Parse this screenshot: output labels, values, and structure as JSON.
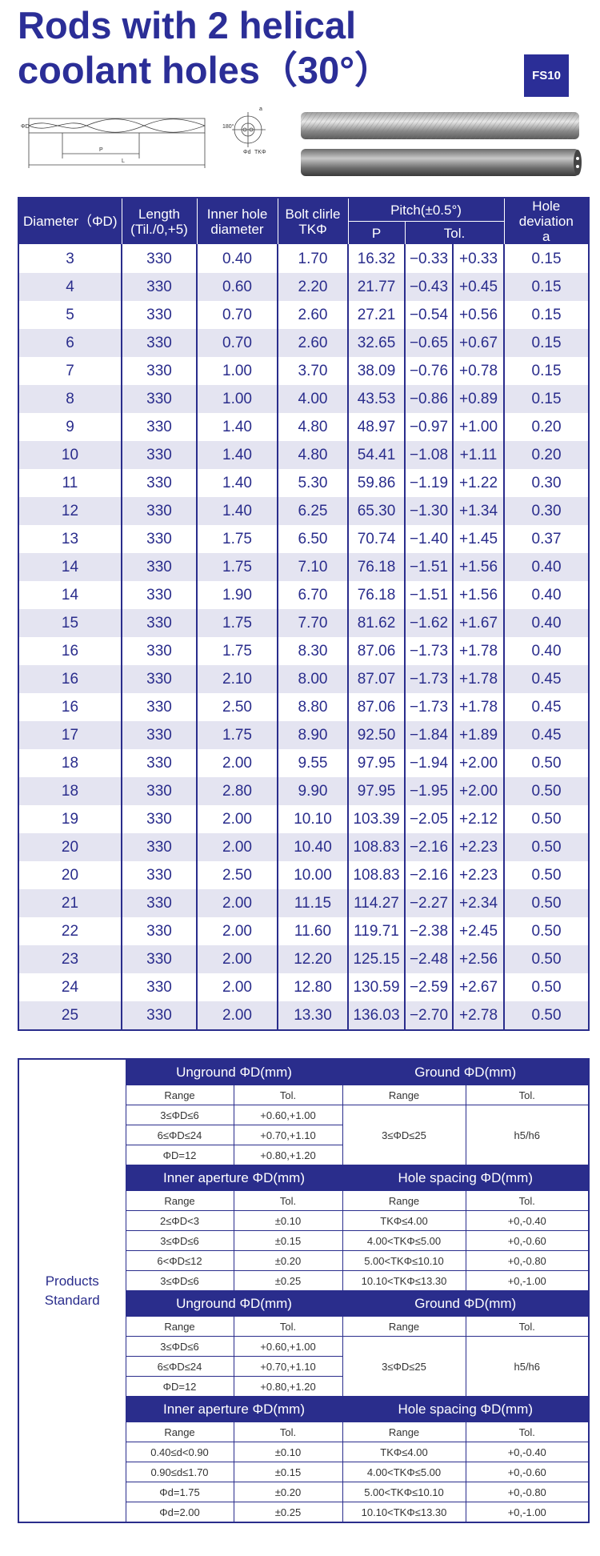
{
  "header": {
    "title_lines": [
      "Rods with 2 helical",
      "coolant holes（30°）"
    ],
    "badge": "FS10"
  },
  "diagram": {
    "labels": [
      "ΦD",
      "P",
      "L",
      "180°",
      "a",
      "Φd",
      "TKΦ"
    ]
  },
  "spec_table": {
    "headers": {
      "diameter": [
        "Diameter（ΦD)"
      ],
      "length": [
        "Length",
        "(Til./0,+5)"
      ],
      "inner": [
        "Inner hole",
        "diameter"
      ],
      "bolt": [
        "Bolt clirle",
        "TKΦ"
      ],
      "pitch": [
        "Pitch(±0.5°)"
      ],
      "pitch_p": [
        "P"
      ],
      "pitch_tol": [
        "Tol."
      ],
      "deviation": [
        "Hole deviation",
        "a"
      ]
    },
    "rows": [
      [
        "3",
        "330",
        "0.40",
        "1.70",
        "16.32",
        "−0.33",
        "+0.33",
        "0.15"
      ],
      [
        "4",
        "330",
        "0.60",
        "2.20",
        "21.77",
        "−0.43",
        "+0.45",
        "0.15"
      ],
      [
        "5",
        "330",
        "0.70",
        "2.60",
        "27.21",
        "−0.54",
        "+0.56",
        "0.15"
      ],
      [
        "6",
        "330",
        "0.70",
        "2.60",
        "32.65",
        "−0.65",
        "+0.67",
        "0.15"
      ],
      [
        "7",
        "330",
        "1.00",
        "3.70",
        "38.09",
        "−0.76",
        "+0.78",
        "0.15"
      ],
      [
        "8",
        "330",
        "1.00",
        "4.00",
        "43.53",
        "−0.86",
        "+0.89",
        "0.15"
      ],
      [
        "9",
        "330",
        "1.40",
        "4.80",
        "48.97",
        "−0.97",
        "+1.00",
        "0.20"
      ],
      [
        "10",
        "330",
        "1.40",
        "4.80",
        "54.41",
        "−1.08",
        "+1.11",
        "0.20"
      ],
      [
        "11",
        "330",
        "1.40",
        "5.30",
        "59.86",
        "−1.19",
        "+1.22",
        "0.30"
      ],
      [
        "12",
        "330",
        "1.40",
        "6.25",
        "65.30",
        "−1.30",
        "+1.34",
        "0.30"
      ],
      [
        "13",
        "330",
        "1.75",
        "6.50",
        "70.74",
        "−1.40",
        "+1.45",
        "0.37"
      ],
      [
        "14",
        "330",
        "1.75",
        "7.10",
        "76.18",
        "−1.51",
        "+1.56",
        "0.40"
      ],
      [
        "14",
        "330",
        "1.90",
        "6.70",
        "76.18",
        "−1.51",
        "+1.56",
        "0.40"
      ],
      [
        "15",
        "330",
        "1.75",
        "7.70",
        "81.62",
        "−1.62",
        "+1.67",
        "0.40"
      ],
      [
        "16",
        "330",
        "1.75",
        "8.30",
        "87.06",
        "−1.73",
        "+1.78",
        "0.40"
      ],
      [
        "16",
        "330",
        "2.10",
        "8.00",
        "87.07",
        "−1.73",
        "+1.78",
        "0.45"
      ],
      [
        "16",
        "330",
        "2.50",
        "8.80",
        "87.06",
        "−1.73",
        "+1.78",
        "0.45"
      ],
      [
        "17",
        "330",
        "1.75",
        "8.90",
        "92.50",
        "−1.84",
        "+1.89",
        "0.45"
      ],
      [
        "18",
        "330",
        "2.00",
        "9.55",
        "97.95",
        "−1.94",
        "+2.00",
        "0.50"
      ],
      [
        "18",
        "330",
        "2.80",
        "9.90",
        "97.95",
        "−1.95",
        "+2.00",
        "0.50"
      ],
      [
        "19",
        "330",
        "2.00",
        "10.10",
        "103.39",
        "−2.05",
        "+2.12",
        "0.50"
      ],
      [
        "20",
        "330",
        "2.00",
        "10.40",
        "108.83",
        "−2.16",
        "+2.23",
        "0.50"
      ],
      [
        "20",
        "330",
        "2.50",
        "10.00",
        "108.83",
        "−2.16",
        "+2.23",
        "0.50"
      ],
      [
        "21",
        "330",
        "2.00",
        "11.15",
        "114.27",
        "−2.27",
        "+2.34",
        "0.50"
      ],
      [
        "22",
        "330",
        "2.00",
        "11.60",
        "119.71",
        "−2.38",
        "+2.45",
        "0.50"
      ],
      [
        "23",
        "330",
        "2.00",
        "12.20",
        "125.15",
        "−2.48",
        "+2.56",
        "0.50"
      ],
      [
        "24",
        "330",
        "2.00",
        "12.80",
        "130.59",
        "−2.59",
        "+2.67",
        "0.50"
      ],
      [
        "25",
        "330",
        "2.00",
        "13.30",
        "136.03",
        "−2.70",
        "+2.78",
        "0.50"
      ]
    ]
  },
  "standards": {
    "label": [
      "Products",
      "Standard"
    ],
    "blocks": [
      {
        "left": {
          "title": "Unground ΦD(mm)",
          "headers": [
            "Range",
            "Tol."
          ],
          "rows": [
            [
              "3≤ΦD≤6",
              "+0.60,+1.00"
            ],
            [
              "6≤ΦD≤24",
              "+0.70,+1.10"
            ],
            [
              "ΦD=12",
              "+0.80,+1.20"
            ]
          ]
        },
        "right": {
          "title": "Ground ΦD(mm)",
          "headers": [
            "Range",
            "Tol."
          ],
          "rows": [
            [
              "3≤ΦD≤25",
              "h5/h6"
            ]
          ]
        }
      },
      {
        "left": {
          "title": "Inner aperture ΦD(mm)",
          "headers": [
            "Range",
            "Tol."
          ],
          "rows": [
            [
              "2≤ΦD<3",
              "±0.10"
            ],
            [
              "3≤ΦD≤6",
              "±0.15"
            ],
            [
              "6<ΦD≤12",
              "±0.20"
            ],
            [
              "3≤ΦD≤6",
              "±0.25"
            ]
          ]
        },
        "right": {
          "title": "Hole spacing ΦD(mm)",
          "headers": [
            "Range",
            "Tol."
          ],
          "rows": [
            [
              "TKΦ≤4.00",
              "+0,-0.40"
            ],
            [
              "4.00<TKΦ≤5.00",
              "+0,-0.60"
            ],
            [
              "5.00<TKΦ≤10.10",
              "+0,-0.80"
            ],
            [
              "10.10<TKΦ≤13.30",
              "+0,-1.00"
            ]
          ]
        }
      },
      {
        "left": {
          "title": "Unground ΦD(mm)",
          "headers": [
            "Range",
            "Tol."
          ],
          "rows": [
            [
              "3≤ΦD≤6",
              "+0.60,+1.00"
            ],
            [
              "6≤ΦD≤24",
              "+0.70,+1.10"
            ],
            [
              "ΦD=12",
              "+0.80,+1.20"
            ]
          ]
        },
        "right": {
          "title": "Ground ΦD(mm)",
          "headers": [
            "Range",
            "Tol."
          ],
          "rows": [
            [
              "3≤ΦD≤25",
              "h5/h6"
            ]
          ]
        }
      },
      {
        "left": {
          "title": "Inner aperture ΦD(mm)",
          "headers": [
            "Range",
            "Tol."
          ],
          "rows": [
            [
              "0.40≤d<0.90",
              "±0.10"
            ],
            [
              "0.90≤d≤1.70",
              "±0.15"
            ],
            [
              "Φd=1.75",
              "±0.20"
            ],
            [
              "Φd=2.00",
              "±0.25"
            ]
          ]
        },
        "right": {
          "title": "Hole spacing ΦD(mm)",
          "headers": [
            "Range",
            "Tol."
          ],
          "rows": [
            [
              "TKΦ≤4.00",
              "+0,-0.40"
            ],
            [
              "4.00<TKΦ≤5.00",
              "+0,-0.60"
            ],
            [
              "5.00<TKΦ≤10.10",
              "+0,-0.80"
            ],
            [
              "10.10<TKΦ≤13.30",
              "+0,-1.00"
            ]
          ]
        }
      }
    ]
  }
}
